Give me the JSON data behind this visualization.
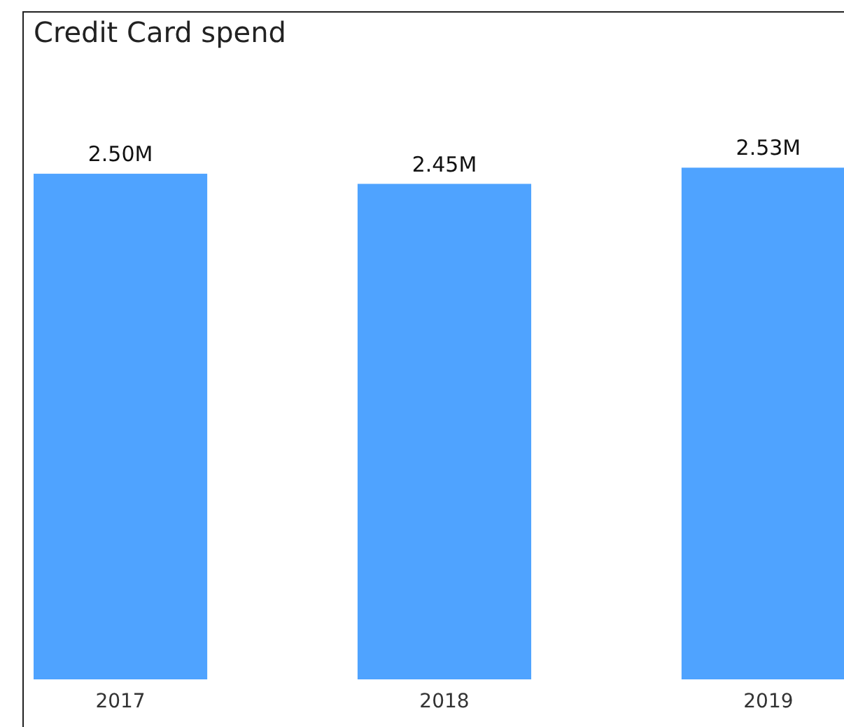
{
  "chart_data": {
    "type": "bar",
    "title": "Credit Card spend",
    "categories": [
      "2017",
      "2018",
      "2019"
    ],
    "values": [
      2.5,
      2.45,
      2.53
    ],
    "value_labels": [
      "2.50M",
      "2.45M",
      "2.53M"
    ],
    "color": "#4fa3ff"
  }
}
